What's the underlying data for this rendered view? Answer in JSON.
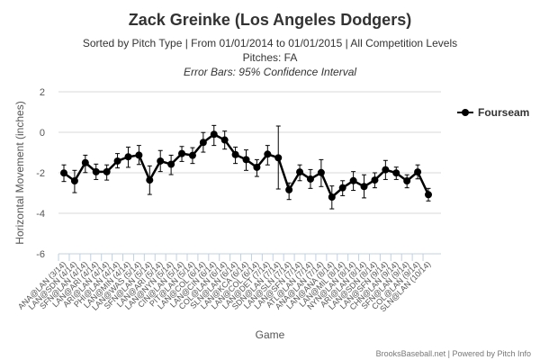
{
  "chart_data": {
    "type": "line",
    "title": "Zack Greinke (Los Angeles Dodgers)",
    "subtitle_lines": [
      "Sorted by Pitch Type | From 01/01/2014 to 01/01/2015 | All Competition Levels",
      "Pitches: FA",
      "Error Bars: 95% Confidence Interval"
    ],
    "xlabel": "Game",
    "ylabel": "Horizontal Movement (inches)",
    "ylim": [
      -6,
      2
    ],
    "yticks": [
      2,
      0,
      -2,
      -4,
      -6
    ],
    "grid": true,
    "legend_position": "right",
    "credit": "BrooksBaseball.net | Powered by Pitch Info",
    "categories": [
      "ANA@LAN (3/14)",
      "LAN@SDN (4/14)",
      "SFN@LAN (4/14)",
      "LAN@ARI (4/14)",
      "ARI@LAN (4/14)",
      "PHI@LAN (4/14)",
      "LAN@MIN (4/14)",
      "LAN@WAS (5/14)",
      "SFN@LAN (5/14)",
      "LAN@ARI (5/14)",
      "LAN@NYN (5/14)",
      "CIN@LAN (5/14)",
      "PIT@LAN (5/14)",
      "LAN@COL (6/14)",
      "LAN@CIN (6/14)",
      "COL@LAN (6/14)",
      "SLN@LAN (6/14)",
      "LAN@KCA (6/14)",
      "LAN@COL (6/14)",
      "LAN@DET (7/14)",
      "SDN@LAN (7/14)",
      "LAN@SLN (7/14)",
      "LAN@SFN (7/14)",
      "ATL@LAN (7/14)",
      "ANA@LAN (7/14)",
      "LAN@ANA (8/14)",
      "LAN@MIL (8/14)",
      "NYN@LAN (8/14)",
      "ARI@LAN (8/14)",
      "LAN@SDN (8/14)",
      "LAN@SFN (9/14)",
      "CHN@LAN (9/14)",
      "SFN@LAN (9/14)",
      "COL@LAN (9/14)",
      "SLN@LAN (10/14)"
    ],
    "series": [
      {
        "name": "Fourseam",
        "color": "#000000",
        "values": [
          -2.01,
          -2.4,
          -1.5,
          -1.95,
          -1.95,
          -1.42,
          -1.21,
          -1.13,
          -2.36,
          -1.42,
          -1.58,
          -1.05,
          -1.14,
          -0.5,
          -0.1,
          -0.38,
          -1.1,
          -1.35,
          -1.73,
          -1.08,
          -1.26,
          -2.84,
          -1.96,
          -2.31,
          -1.99,
          -3.2,
          -2.74,
          -2.39,
          -2.68,
          -2.36,
          -1.85,
          -2.01,
          -2.4,
          -1.96,
          -3.08
        ],
        "error_high": [
          -1.61,
          -1.88,
          -1.13,
          -1.57,
          -1.61,
          -1.05,
          -0.73,
          -0.65,
          -1.66,
          -0.9,
          -1.13,
          -0.7,
          -0.76,
          -0.01,
          0.34,
          0.06,
          -0.73,
          -0.87,
          -1.35,
          -0.65,
          0.31,
          -2.5,
          -1.61,
          -1.84,
          -1.35,
          -2.65,
          -2.39,
          -1.94,
          -2.1,
          -2.0,
          -1.39,
          -1.72,
          -2.1,
          -1.61,
          -2.77
        ],
        "error_low": [
          -2.43,
          -2.98,
          -1.99,
          -2.33,
          -2.36,
          -1.76,
          -1.73,
          -1.59,
          -3.07,
          -1.94,
          -2.09,
          -1.44,
          -1.54,
          -0.98,
          -0.65,
          -0.83,
          -1.54,
          -1.88,
          -2.18,
          -1.61,
          -2.8,
          -3.32,
          -2.39,
          -2.77,
          -2.68,
          -3.78,
          -3.13,
          -2.87,
          -3.24,
          -2.74,
          -2.33,
          -2.33,
          -2.74,
          -2.3,
          -3.39
        ]
      }
    ]
  }
}
